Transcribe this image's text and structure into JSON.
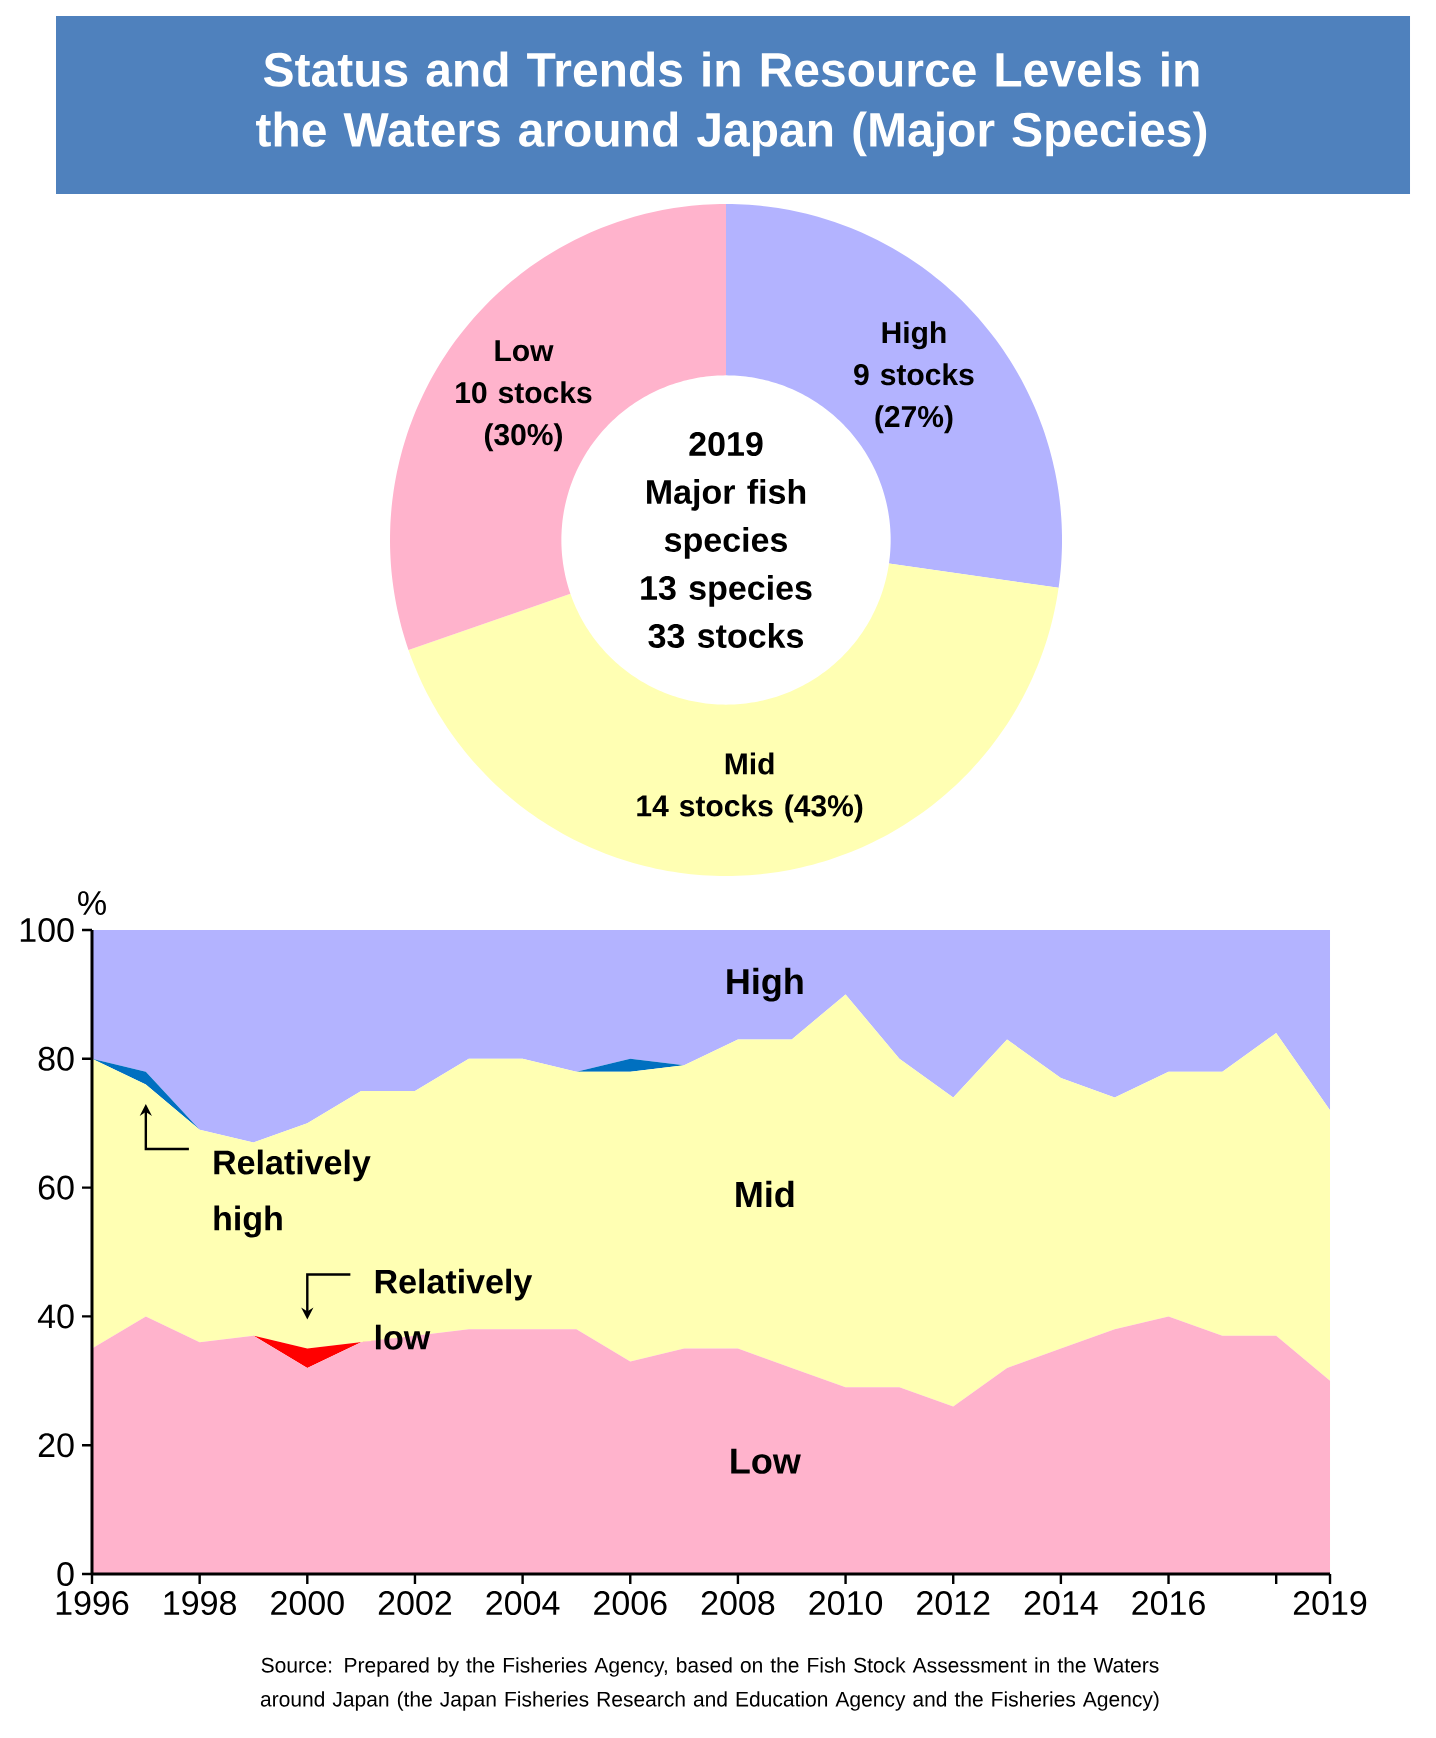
{
  "chart_data": [
    {
      "type": "donut",
      "title": "Status and Trends in Resource Levels in the Waters around Japan (Major Species)",
      "categories": [
        "High",
        "Mid",
        "Low"
      ],
      "values": [
        9,
        14,
        10
      ],
      "value_labels": [
        "9 stocks (27%)",
        "14 stocks (43%)",
        "10 stocks (30%)"
      ],
      "colors": [
        "#b3b3ff",
        "#ffffb3",
        "#ffb3cc"
      ],
      "annotations": [
        "2019",
        "Major fish species",
        "13 species",
        "33 stocks"
      ]
    },
    {
      "type": "area",
      "stacked": true,
      "ylabel": "%",
      "x": [
        1996,
        1997,
        1998,
        1999,
        2000,
        2001,
        2002,
        2003,
        2004,
        2005,
        2006,
        2007,
        2008,
        2009,
        2010,
        2011,
        2012,
        2013,
        2014,
        2015,
        2016,
        2017,
        2018,
        2019
      ],
      "series": [
        {
          "name": "Low",
          "color": "#ffb3cc",
          "values": [
            35,
            40,
            36,
            37,
            32,
            36,
            37,
            38,
            38,
            38,
            33,
            35,
            35,
            32,
            29,
            29,
            26,
            32,
            35,
            38,
            40,
            37,
            37,
            30
          ]
        },
        {
          "name": "Relatively low",
          "color": "#ff0000",
          "values": [
            0,
            0,
            0,
            0,
            3,
            0,
            0,
            0,
            0,
            0,
            0,
            0,
            0,
            0,
            0,
            0,
            0,
            0,
            0,
            0,
            0,
            0,
            0,
            0
          ]
        },
        {
          "name": "Mid",
          "color": "#ffffb3",
          "values": [
            45,
            36,
            33,
            30,
            35,
            39,
            38,
            42,
            42,
            40,
            45,
            44,
            48,
            51,
            61,
            51,
            48,
            51,
            42,
            36,
            38,
            41,
            47,
            42
          ]
        },
        {
          "name": "Relatively high",
          "color": "#0070c0",
          "values": [
            0,
            2,
            0,
            0,
            0,
            0,
            0,
            0,
            0,
            0,
            2,
            0,
            0,
            0,
            0,
            0,
            0,
            0,
            0,
            0,
            0,
            0,
            0,
            0
          ]
        },
        {
          "name": "High",
          "color": "#b3b3ff",
          "values": [
            20,
            22,
            31,
            33,
            30,
            25,
            25,
            20,
            20,
            22,
            20,
            21,
            17,
            17,
            10,
            20,
            26,
            17,
            23,
            26,
            22,
            22,
            16,
            28
          ]
        }
      ],
      "xlim": [
        1996,
        2019
      ],
      "ylim": [
        0,
        100
      ],
      "xticks": [
        1996,
        1998,
        2000,
        2002,
        2004,
        2006,
        2008,
        2010,
        2012,
        2014,
        2016,
        {
          "value": 2018,
          "label": null
        },
        2019
      ],
      "yticks": [
        0,
        20,
        40,
        60,
        80,
        100
      ],
      "annotations": [
        "Source: Prepared by the Fisheries Agency, based on the Fish Stock Assessment in the Waters around Japan (the Japan Fisheries Research and Education Agency and the Fisheries Agency)"
      ]
    }
  ]
}
